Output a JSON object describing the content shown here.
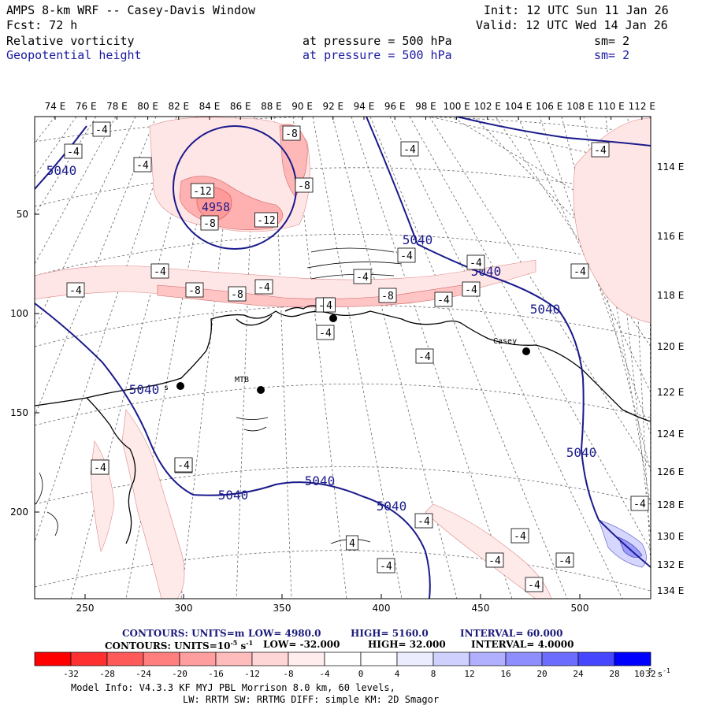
{
  "header": {
    "title": "AMPS 8-km WRF -- Casey-Davis Window",
    "init": "Init: 12 UTC Sun 11 Jan 26",
    "fcst": "Fcst:   72 h",
    "valid": "Valid: 12 UTC Wed 14 Jan 26",
    "field1": {
      "name": "Relative vorticity",
      "level": "at pressure =  500 hPa",
      "sm": "sm= 2"
    },
    "field2": {
      "name": "Geopotential height",
      "level": "at pressure =  500 hPa",
      "sm": "sm= 2"
    }
  },
  "colors": {
    "height_contour": "#1a1a8c",
    "coast": "#000000",
    "grid": "#555555"
  },
  "map": {
    "top_lon_labels": [
      "74 E",
      "76 E",
      "78 E",
      "80 E",
      "82 E",
      "84 E",
      "86 E",
      "88 E",
      "90 E",
      "92 E",
      "94 E",
      "96 E",
      "98 E",
      "100 E",
      "102 E",
      "104 E",
      "106 E",
      "108 E",
      "110 E",
      "112 E"
    ],
    "right_lon_labels": [
      "114 E",
      "116 E",
      "118 E",
      "120 E",
      "122 E",
      "124 E",
      "126 E",
      "128 E",
      "130 E",
      "132 E",
      "134 E"
    ],
    "x_grid_labels": [
      "250",
      "300",
      "350",
      "400",
      "450",
      "500"
    ],
    "y_grid_labels": [
      "50",
      "100",
      "150",
      "200"
    ],
    "stations": [
      "Casey",
      "MTB",
      "s"
    ],
    "height_labels": [
      "5040",
      "5040",
      "5040",
      "5040",
      "5040",
      "5040",
      "5040",
      "5040",
      "5040"
    ],
    "low_label": "4958",
    "vort_labels": [
      "-4",
      "-4",
      "-4",
      "-4",
      "-4",
      "-4",
      "-4",
      "-4",
      "-4",
      "-4",
      "-4",
      "-4",
      "-4",
      "-4",
      "-4",
      "-4",
      "-4",
      "-4",
      "-4",
      "-4",
      "-4",
      "-8",
      "-8",
      "-8",
      "-8",
      "-8",
      "-12",
      "-12",
      "-8",
      "-4",
      "-4",
      "-4",
      "-4",
      "-4",
      "-4",
      "4",
      "4",
      "-4"
    ]
  },
  "footer": {
    "contours1": {
      "units": "CONTOURS:  UNITS=m",
      "low": "LOW=  4980.0",
      "high": "HIGH=  5160.0",
      "interval": "INTERVAL=   60.000"
    },
    "contours2": {
      "units": "CONTOURS:  UNITS=10",
      "exp": "-5",
      "s": " s",
      "sexp": "-1",
      "low": "LOW=  -32.000",
      "high": "HIGH=  32.000",
      "interval": "INTERVAL=   4.0000"
    },
    "colorbar_labels": [
      "-32",
      "-28",
      "-24",
      "-20",
      "-16",
      "-12",
      "-8",
      "-4",
      "0",
      "4",
      "8",
      "12",
      "16",
      "20",
      "24",
      "28",
      "32"
    ],
    "colorbar_unit": "10",
    "colorbar_unit_exp1": "-5",
    "colorbar_unit_s": " s",
    "colorbar_unit_exp2": "-1",
    "colorbar_colors": [
      "#ff0000",
      "#ff3030",
      "#ff5a5a",
      "#ff7e7e",
      "#ff9e9e",
      "#ffbcbc",
      "#ffd6d6",
      "#ffecec",
      "#ffffff",
      "#ffffff",
      "#ececff",
      "#d0d0ff",
      "#b0b0ff",
      "#8e8eff",
      "#6c6cff",
      "#4646ff",
      "#0000ff"
    ],
    "model_info": "Model Info: V4.3.3   KF      MYJ PBL  Morrison          8.0 km,  60 levels,",
    "model_info2": "LW: RRTM SW: RRTMG   DIFF: simple KM: 2D Smagor"
  }
}
